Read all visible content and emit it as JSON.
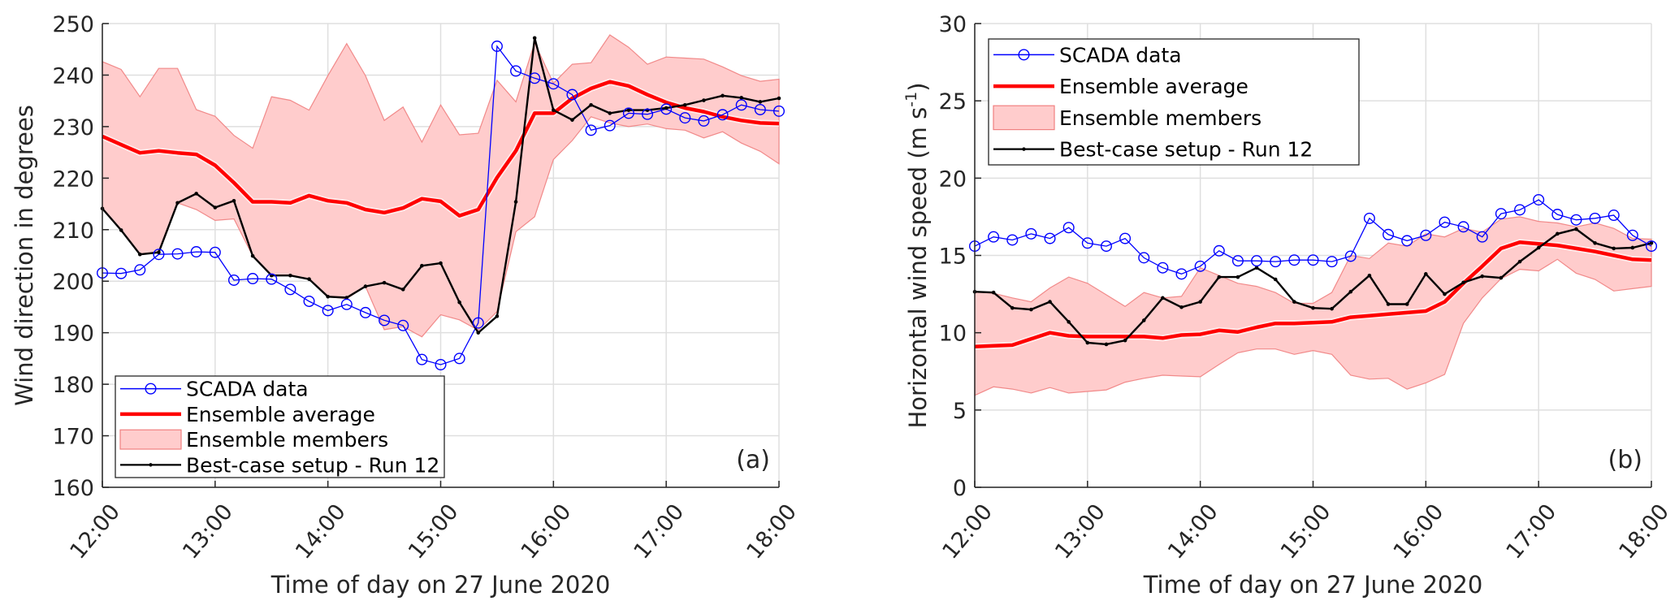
{
  "chart_data": [
    {
      "type": "line",
      "panel_label": "(a)",
      "title": "",
      "xlabel": "Time of day on 27 June 2020",
      "ylabel": "Wind direction in degrees",
      "ylabel_unit_sup": "",
      "ylim": [
        160,
        250
      ],
      "yticks": [
        160,
        170,
        180,
        190,
        200,
        210,
        220,
        230,
        240,
        250
      ],
      "xlim": [
        "12:00",
        "18:00"
      ],
      "xticks": [
        "12:00",
        "13:00",
        "14:00",
        "15:00",
        "16:00",
        "17:00",
        "18:00"
      ],
      "grid": true,
      "legend_position": "bottom-left",
      "x": [
        "12:00",
        "12:10",
        "12:20",
        "12:30",
        "12:40",
        "12:50",
        "13:00",
        "13:10",
        "13:20",
        "13:30",
        "13:40",
        "13:50",
        "14:00",
        "14:10",
        "14:20",
        "14:30",
        "14:40",
        "14:50",
        "15:00",
        "15:10",
        "15:20",
        "15:30",
        "15:40",
        "15:50",
        "16:00",
        "16:10",
        "16:20",
        "16:30",
        "16:40",
        "16:50",
        "17:00",
        "17:10",
        "17:20",
        "17:30",
        "17:40",
        "17:50",
        "18:00"
      ],
      "series": [
        {
          "name": "SCADA data",
          "style": "line-circle",
          "color": "#0000ff",
          "values": [
            201.6,
            201.5,
            202.2,
            205.2,
            205.3,
            205.7,
            205.6,
            200.2,
            200.5,
            200.4,
            198.4,
            196.1,
            194.3,
            195.5,
            193.9,
            192.4,
            191.4,
            184.8,
            183.8,
            185.0,
            191.9,
            245.6,
            240.8,
            239.4,
            238.3,
            236.2,
            229.3,
            230.2,
            232.6,
            232.4,
            233.4,
            231.7,
            231.1,
            232.3,
            234.2,
            233.3,
            233.0
          ]
        },
        {
          "name": "Ensemble average",
          "style": "thick-line",
          "color": "#ff0000",
          "values": [
            228.1,
            226.5,
            224.9,
            225.3,
            224.9,
            224.6,
            222.5,
            219.1,
            215.4,
            215.4,
            215.2,
            216.6,
            215.6,
            215.2,
            213.9,
            213.3,
            214.2,
            216.0,
            215.5,
            212.7,
            213.9,
            220.1,
            225.3,
            232.6,
            232.6,
            235.5,
            237.4,
            238.7,
            237.9,
            236.2,
            234.7,
            233.6,
            232.9,
            231.9,
            231.2,
            230.7,
            230.6
          ]
        },
        {
          "name": "Ensemble members",
          "style": "band",
          "color": "#ffcccc",
          "edge_color": "#f08080",
          "upper": [
            242.6,
            241.1,
            235.8,
            241.3,
            241.3,
            233.3,
            232.0,
            228.3,
            225.8,
            235.8,
            235.1,
            233.2,
            239.9,
            246.1,
            239.9,
            231.2,
            233.8,
            227.0,
            234.2,
            228.4,
            228.7,
            239.0,
            234.8,
            246.3,
            238.4,
            242.1,
            242.4,
            247.8,
            245.4,
            242.1,
            243.5,
            243.3,
            243.1,
            241.6,
            239.9,
            238.8,
            239.2
          ],
          "lower": [
            214.1,
            209.9,
            205.2,
            205.6,
            215.2,
            213.9,
            211.8,
            212.1,
            204.9,
            201.1,
            201.1,
            200.4,
            197.0,
            196.6,
            199.0,
            190.6,
            191.2,
            189.2,
            193.5,
            192.5,
            190.5,
            194.1,
            209.6,
            212.5,
            223.6,
            227.3,
            231.9,
            230.7,
            230.0,
            230.5,
            229.6,
            229.3,
            227.8,
            229.0,
            226.8,
            225.2,
            222.8
          ]
        },
        {
          "name": "Best-case setup - Run 12",
          "style": "line-dot",
          "color": "#000000",
          "values": [
            214.1,
            209.9,
            205.2,
            205.6,
            215.2,
            217.0,
            214.3,
            215.6,
            204.9,
            201.1,
            201.1,
            200.4,
            197.0,
            196.8,
            199.0,
            199.7,
            198.4,
            203.0,
            203.5,
            195.9,
            190.0,
            193.2,
            215.4,
            247.2,
            233.2,
            231.3,
            234.2,
            232.6,
            233.2,
            233.2,
            233.6,
            234.2,
            235.1,
            236.0,
            235.6,
            234.8,
            235.5
          ]
        }
      ]
    },
    {
      "type": "line",
      "panel_label": "(b)",
      "title": "",
      "xlabel": "Time of day on 27 June 2020",
      "ylabel": "Horizontal wind speed (m s",
      "ylabel_unit_sup": "-1",
      "ylabel_close": ")",
      "ylim": [
        0,
        30
      ],
      "yticks": [
        0,
        5,
        10,
        15,
        20,
        25,
        30
      ],
      "xlim": [
        "12:00",
        "18:00"
      ],
      "xticks": [
        "12:00",
        "13:00",
        "14:00",
        "15:00",
        "16:00",
        "17:00",
        "18:00"
      ],
      "grid": true,
      "legend_position": "top-left",
      "x": [
        "12:00",
        "12:10",
        "12:20",
        "12:30",
        "12:40",
        "12:50",
        "13:00",
        "13:10",
        "13:20",
        "13:30",
        "13:40",
        "13:50",
        "14:00",
        "14:10",
        "14:20",
        "14:30",
        "14:40",
        "14:50",
        "15:00",
        "15:10",
        "15:20",
        "15:30",
        "15:40",
        "15:50",
        "16:00",
        "16:10",
        "16:20",
        "16:30",
        "16:40",
        "16:50",
        "17:00",
        "17:10",
        "17:20",
        "17:30",
        "17:40",
        "17:50",
        "18:00"
      ],
      "series": [
        {
          "name": "SCADA data",
          "style": "line-circle",
          "color": "#0000ff",
          "values": [
            15.6,
            16.2,
            16.0,
            16.4,
            16.1,
            16.8,
            15.8,
            15.6,
            16.1,
            14.85,
            14.2,
            13.8,
            14.3,
            15.3,
            14.65,
            14.65,
            14.6,
            14.7,
            14.7,
            14.6,
            14.95,
            17.4,
            16.35,
            15.95,
            16.3,
            17.15,
            16.85,
            16.2,
            17.7,
            17.95,
            18.6,
            17.65,
            17.3,
            17.4,
            17.6,
            16.3,
            15.6
          ]
        },
        {
          "name": "Ensemble average",
          "style": "thick-line",
          "color": "#ff0000",
          "values": [
            9.1,
            9.15,
            9.2,
            9.6,
            10.0,
            9.8,
            9.75,
            9.75,
            9.75,
            9.75,
            9.65,
            9.85,
            9.9,
            10.15,
            10.05,
            10.35,
            10.6,
            10.6,
            10.65,
            10.7,
            11.0,
            11.1,
            11.2,
            11.3,
            11.4,
            12.0,
            13.2,
            14.3,
            15.45,
            15.85,
            15.75,
            15.65,
            15.45,
            15.25,
            15.0,
            14.75,
            14.7
          ]
        },
        {
          "name": "Ensemble members",
          "style": "band",
          "color": "#ffcccc",
          "edge_color": "#f08080",
          "upper": [
            12.65,
            12.55,
            12.25,
            12.0,
            12.9,
            13.6,
            13.2,
            12.45,
            11.7,
            12.6,
            12.25,
            12.35,
            14.2,
            13.7,
            13.2,
            13.0,
            12.6,
            11.9,
            11.9,
            12.6,
            15.0,
            14.8,
            15.8,
            15.6,
            16.4,
            16.2,
            16.75,
            16.5,
            17.35,
            17.5,
            17.2,
            17.1,
            16.85,
            17.1,
            16.75,
            16.1,
            16.05
          ],
          "lower": [
            5.95,
            6.5,
            6.35,
            6.1,
            6.45,
            6.1,
            6.2,
            6.3,
            6.8,
            7.05,
            7.25,
            7.2,
            7.15,
            7.95,
            8.7,
            8.95,
            8.95,
            8.6,
            8.85,
            8.6,
            7.25,
            7.0,
            7.05,
            6.35,
            6.75,
            7.3,
            10.6,
            12.25,
            13.5,
            14.1,
            14.0,
            14.75,
            13.85,
            13.45,
            12.7,
            12.85,
            13.0
          ]
        },
        {
          "name": "Best-case setup - Run 12",
          "style": "line-dot",
          "color": "#000000",
          "values": [
            12.65,
            12.6,
            11.6,
            11.5,
            12.0,
            10.7,
            9.35,
            9.25,
            9.5,
            10.8,
            12.25,
            11.65,
            12.0,
            13.6,
            13.6,
            14.2,
            13.45,
            12.0,
            11.6,
            11.55,
            12.65,
            13.7,
            11.85,
            11.85,
            13.8,
            12.5,
            13.25,
            13.65,
            13.55,
            14.6,
            15.5,
            16.4,
            16.7,
            15.8,
            15.45,
            15.5,
            15.8
          ]
        }
      ]
    }
  ]
}
